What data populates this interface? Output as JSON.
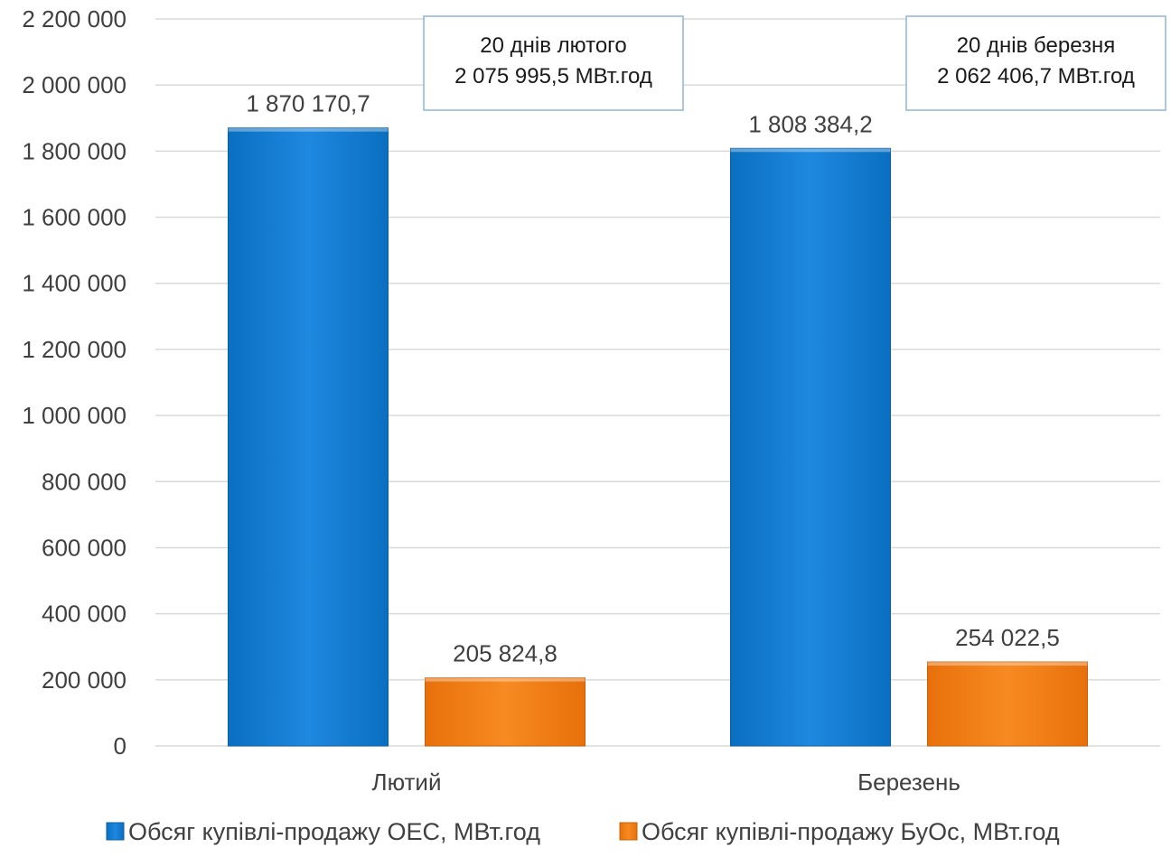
{
  "chart_data": {
    "type": "bar",
    "categories": [
      "Лютий",
      "Березень"
    ],
    "series": [
      {
        "name": "Обсяг купівлі-продажу ОЕС, МВт.год",
        "values": [
          1870170.7,
          1808384.2
        ],
        "labels": [
          "1 870 170,7",
          "1 808 384,2"
        ],
        "color": "#0a75c9"
      },
      {
        "name": "Обсяг купівлі-продажу БуОс, МВт.год",
        "values": [
          205824.8,
          254022.5
        ],
        "labels": [
          "205 824,8",
          "254 022,5"
        ],
        "color": "#ef7a12"
      }
    ],
    "yticks": [
      0,
      200000,
      400000,
      600000,
      800000,
      1000000,
      1200000,
      1400000,
      1600000,
      1800000,
      2000000,
      2200000
    ],
    "ytick_labels": [
      "0",
      "200 000",
      "400 000",
      "600 000",
      "800 000",
      "1 000 000",
      "1 200 000",
      "1 400 000",
      "1 600 000",
      "1 800 000",
      "2 000 000",
      "2 200 000"
    ],
    "ylim": [
      0,
      2200000
    ],
    "grid": true,
    "legend_position": "bottom",
    "annotations": [
      {
        "line1": "20 днів лютого",
        "line2": "2 075 995,5 МВт.год",
        "category": "Лютий"
      },
      {
        "line1": "20 днів березня",
        "line2": "2 062 406,7 МВт.год",
        "category": "Березень"
      }
    ]
  }
}
